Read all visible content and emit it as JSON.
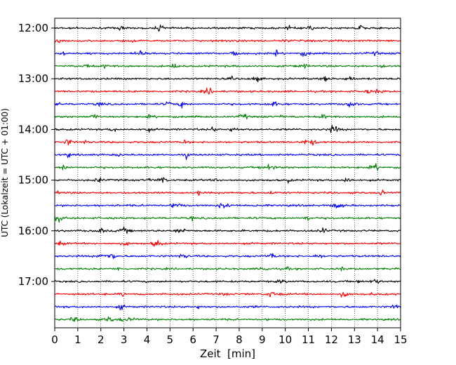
{
  "chart_data": {
    "type": "line",
    "title": "",
    "xlabel": "Zeit  [min]",
    "ylabel": "UTC (Lokalzeit = UTC + 01:00)",
    "xlim": [
      0,
      15
    ],
    "x_ticks": [
      0,
      1,
      2,
      3,
      4,
      5,
      6,
      7,
      8,
      9,
      10,
      11,
      12,
      13,
      14,
      15
    ],
    "x_tick_labels": [
      "0",
      "1",
      "2",
      "3",
      "4",
      "5",
      "6",
      "7",
      "8",
      "9",
      "10",
      "11",
      "12",
      "13",
      "14",
      "15"
    ],
    "y_tick_labels": [
      "12:00",
      "13:00",
      "14:00",
      "15:00",
      "16:00",
      "17:00"
    ],
    "grid": "vertical dotted",
    "trace_colors": [
      "#000000",
      "#ff0000",
      "#0000ff",
      "#008000"
    ],
    "traces": [
      {
        "start": "12:00"
      },
      {
        "start": "12:15"
      },
      {
        "start": "12:30"
      },
      {
        "start": "12:45"
      },
      {
        "start": "13:00"
      },
      {
        "start": "13:15"
      },
      {
        "start": "13:30"
      },
      {
        "start": "13:45"
      },
      {
        "start": "14:00"
      },
      {
        "start": "14:15"
      },
      {
        "start": "14:30"
      },
      {
        "start": "14:45"
      },
      {
        "start": "15:00"
      },
      {
        "start": "15:15"
      },
      {
        "start": "15:30"
      },
      {
        "start": "15:45"
      },
      {
        "start": "16:00"
      },
      {
        "start": "16:15"
      },
      {
        "start": "16:30"
      },
      {
        "start": "16:45"
      },
      {
        "start": "17:00"
      },
      {
        "start": "17:15"
      },
      {
        "start": "17:30"
      },
      {
        "start": "17:45"
      }
    ]
  }
}
